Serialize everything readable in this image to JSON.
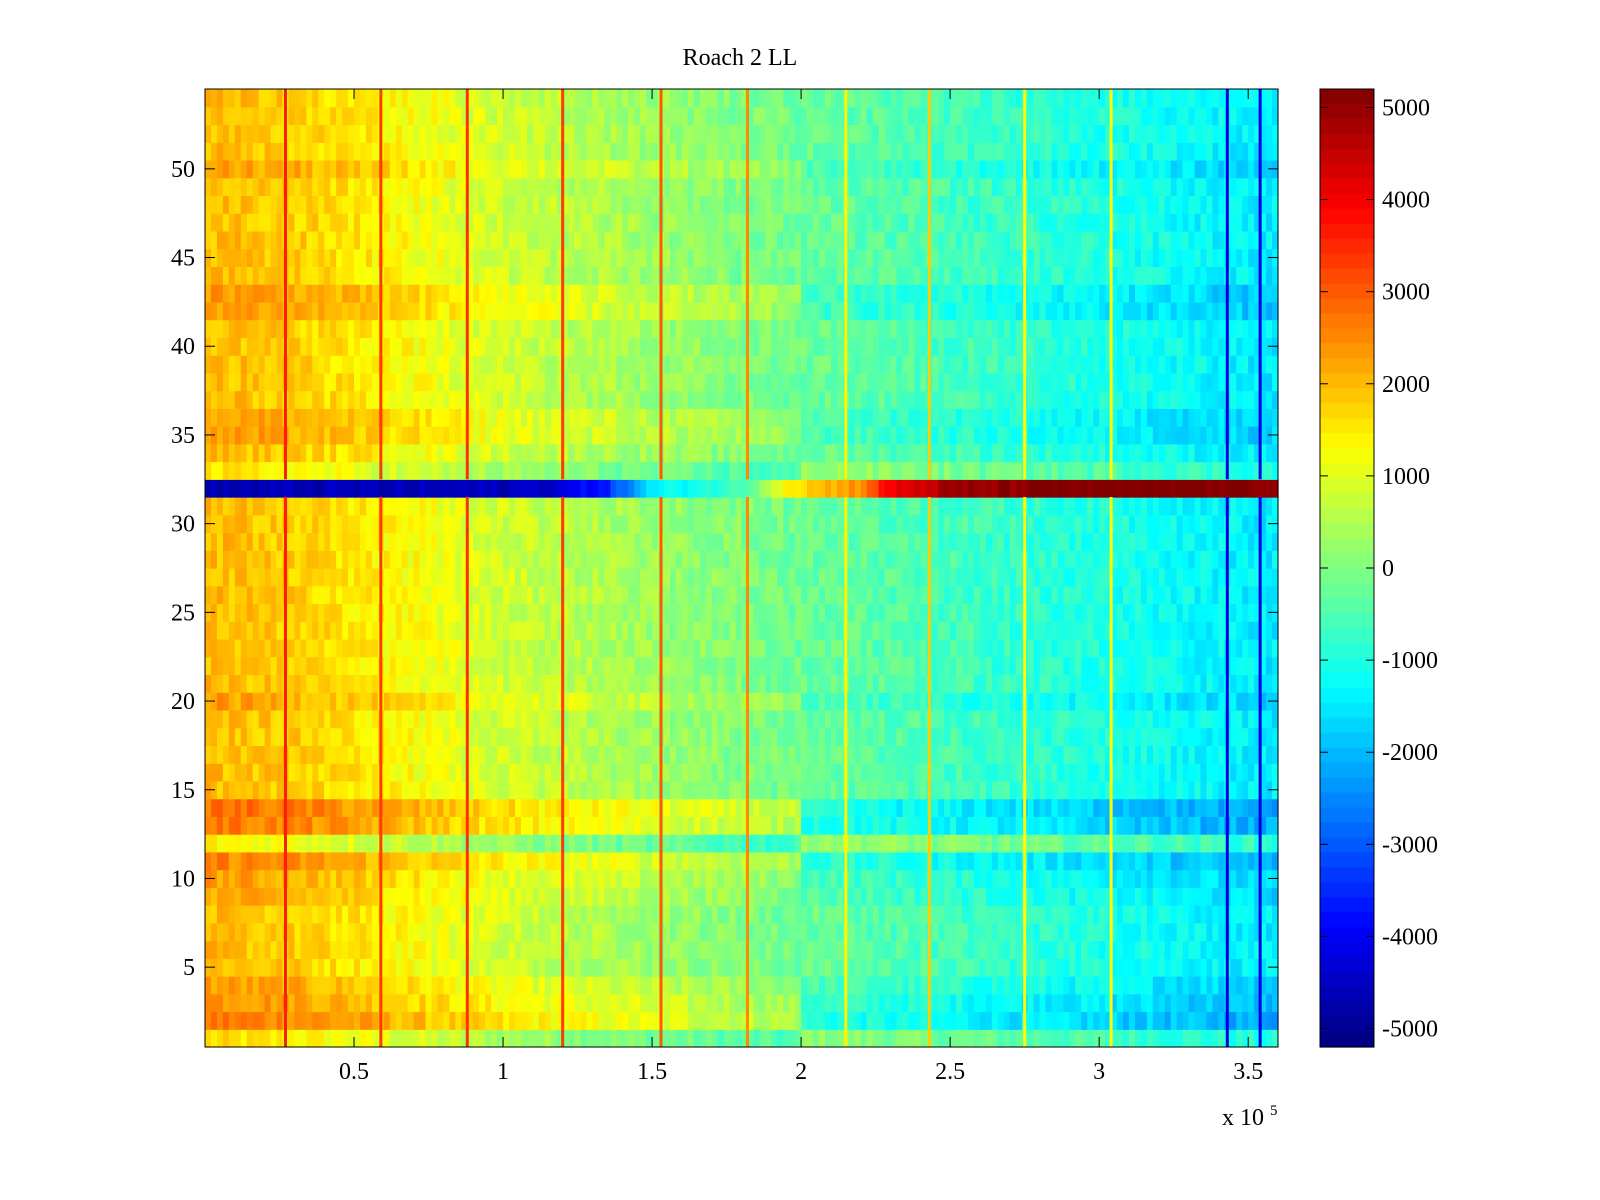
{
  "chart_data": {
    "type": "heatmap",
    "title": "Roach 2 LL",
    "xlabel": "",
    "ylabel": "",
    "x_multiplier_label": {
      "base": "x 10",
      "exponent": "5"
    },
    "xlim": [
      0,
      360000
    ],
    "ylim": [
      0.5,
      54.5
    ],
    "x_ticks": [
      {
        "value": 0.5,
        "label": "0.5"
      },
      {
        "value": 1,
        "label": "1"
      },
      {
        "value": 1.5,
        "label": "1.5"
      },
      {
        "value": 2,
        "label": "2"
      },
      {
        "value": 2.5,
        "label": "2.5"
      },
      {
        "value": 3,
        "label": "3"
      },
      {
        "value": 3.5,
        "label": "3.5"
      }
    ],
    "y_ticks": [
      {
        "value": 5,
        "label": "5"
      },
      {
        "value": 10,
        "label": "10"
      },
      {
        "value": 15,
        "label": "15"
      },
      {
        "value": 20,
        "label": "20"
      },
      {
        "value": 25,
        "label": "25"
      },
      {
        "value": 30,
        "label": "30"
      },
      {
        "value": 35,
        "label": "35"
      },
      {
        "value": 40,
        "label": "40"
      },
      {
        "value": 45,
        "label": "45"
      },
      {
        "value": 50,
        "label": "50"
      }
    ],
    "rows": 54,
    "colormap": "jet",
    "colorbar": {
      "clim": [
        -5200,
        5200
      ],
      "ticks": [
        {
          "value": 5000,
          "label": "5000"
        },
        {
          "value": 4000,
          "label": "4000"
        },
        {
          "value": 3000,
          "label": "3000"
        },
        {
          "value": 2000,
          "label": "2000"
        },
        {
          "value": 1000,
          "label": "1000"
        },
        {
          "value": 0,
          "label": "0"
        },
        {
          "value": -1000,
          "label": "-1000"
        },
        {
          "value": -2000,
          "label": "-2000"
        },
        {
          "value": -3000,
          "label": "-3000"
        },
        {
          "value": -4000,
          "label": "-4000"
        },
        {
          "value": -5000,
          "label": "-5000"
        }
      ]
    },
    "column_trend": {
      "description": "approximate value vs x (data units) for typical rows",
      "x": [
        0,
        30000,
        60000,
        100000,
        150000,
        200000,
        250000,
        300000,
        360000
      ],
      "values": [
        2000,
        1800,
        1400,
        800,
        300,
        -200,
        -600,
        -1000,
        -1500
      ]
    },
    "row_offsets": [
      {
        "row": 1,
        "offset": -400
      },
      {
        "row": 2,
        "offset": 700
      },
      {
        "row": 3,
        "offset": 500
      },
      {
        "row": 4,
        "offset": 300
      },
      {
        "row": 9,
        "offset": 200
      },
      {
        "row": 10,
        "offset": 300
      },
      {
        "row": 11,
        "offset": 600
      },
      {
        "row": 12,
        "offset": -600
      },
      {
        "row": 13,
        "offset": 700
      },
      {
        "row": 14,
        "offset": 800
      },
      {
        "row": 20,
        "offset": 300
      },
      {
        "row": 33,
        "offset": -500
      },
      {
        "row": 35,
        "offset": 300
      },
      {
        "row": 36,
        "offset": 300
      },
      {
        "row": 42,
        "offset": 400
      },
      {
        "row": 43,
        "offset": 400
      },
      {
        "row": 50,
        "offset": 300
      }
    ],
    "anomalous_row": {
      "row": 32,
      "x": [
        0,
        100000,
        120000,
        135000,
        150000,
        180000,
        195000,
        220000,
        230000,
        250000,
        280000,
        360000
      ],
      "values": [
        -4700,
        -4600,
        -4300,
        -3500,
        -1500,
        -600,
        1500,
        2500,
        4000,
        4800,
        5200,
        5200
      ]
    },
    "vertical_streaks": [
      {
        "x": 27000,
        "value": 3600
      },
      {
        "x": 59000,
        "value": 3300
      },
      {
        "x": 88000,
        "value": 3400
      },
      {
        "x": 120000,
        "value": 3300
      },
      {
        "x": 153000,
        "value": 3000
      },
      {
        "x": 182000,
        "value": 2500
      },
      {
        "x": 215000,
        "value": 1400
      },
      {
        "x": 243000,
        "value": 1800
      },
      {
        "x": 275000,
        "value": 1300
      },
      {
        "x": 304000,
        "value": 1300
      },
      {
        "x": 343000,
        "value": -4200
      },
      {
        "x": 354000,
        "value": -4200
      }
    ]
  }
}
